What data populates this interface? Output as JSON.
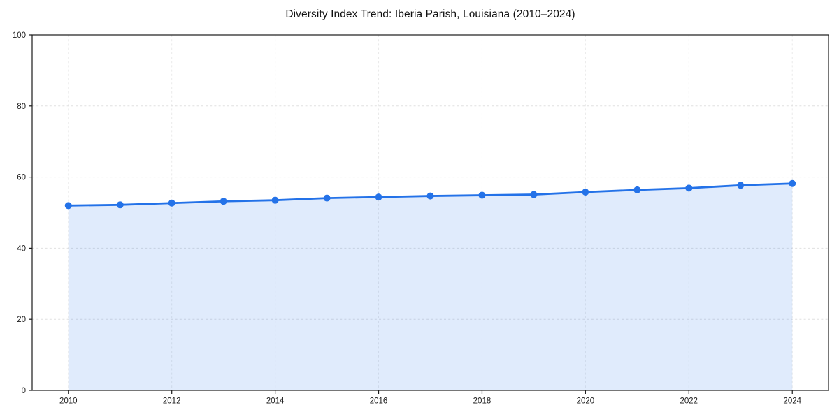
{
  "figure": {
    "background_color": "#ffffff"
  },
  "chart_data": {
    "type": "area",
    "title": "Diversity Index Trend: Iberia Parish, Louisiana (2010–2024)",
    "series_name": "Diversity Index",
    "x": [
      2010,
      2011,
      2012,
      2013,
      2014,
      2015,
      2016,
      2017,
      2018,
      2019,
      2020,
      2021,
      2022,
      2023,
      2024
    ],
    "values": [
      52.0,
      52.2,
      52.7,
      53.2,
      53.5,
      54.1,
      54.4,
      54.7,
      54.9,
      55.1,
      55.8,
      56.4,
      56.9,
      57.7,
      58.2
    ],
    "xlabel": "",
    "ylabel": "",
    "ylim": [
      0,
      100
    ],
    "yticks": [
      0,
      20,
      40,
      60,
      80,
      100
    ],
    "xticks": [
      2010,
      2012,
      2014,
      2016,
      2018,
      2020,
      2022,
      2024
    ],
    "x_margin_fraction": 0.05,
    "grid": true,
    "grid_style": "dashed",
    "legend": "none",
    "marker": "circle",
    "colors": {
      "line": "#2472e8",
      "marker": "#2472e8",
      "fill": "#2472e8",
      "fill_opacity": 0.14,
      "grid_horizontal": "#e0e0e0",
      "grid_vertical": "#eaeaea",
      "spine": "#1a1a1a",
      "tick_text": "#1c1c1c",
      "title_text": "#111111"
    }
  }
}
